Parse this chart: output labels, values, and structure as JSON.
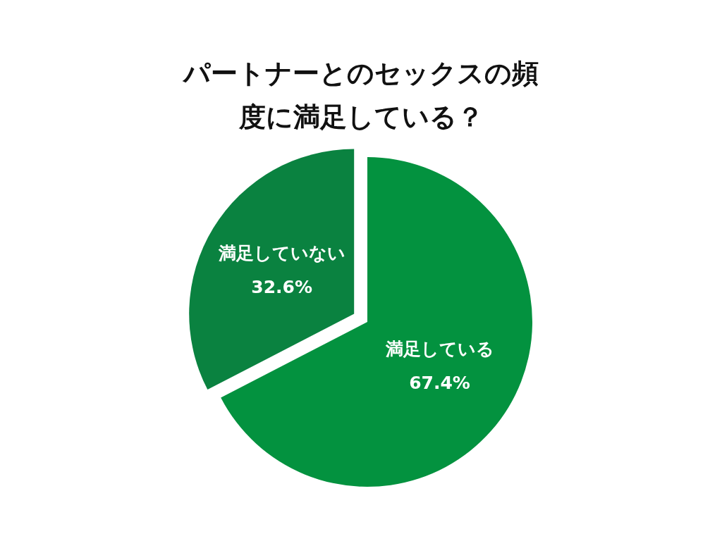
{
  "chart_data": {
    "type": "pie",
    "title": "パートナーとのセックスの頻度に満足している？",
    "categories": [
      "満足している",
      "満足していない"
    ],
    "values": [
      67.4,
      32.6
    ],
    "value_labels": [
      "67.4%",
      "32.6%"
    ],
    "colors": [
      "#03923f",
      "#0a8240"
    ],
    "legend": false
  }
}
